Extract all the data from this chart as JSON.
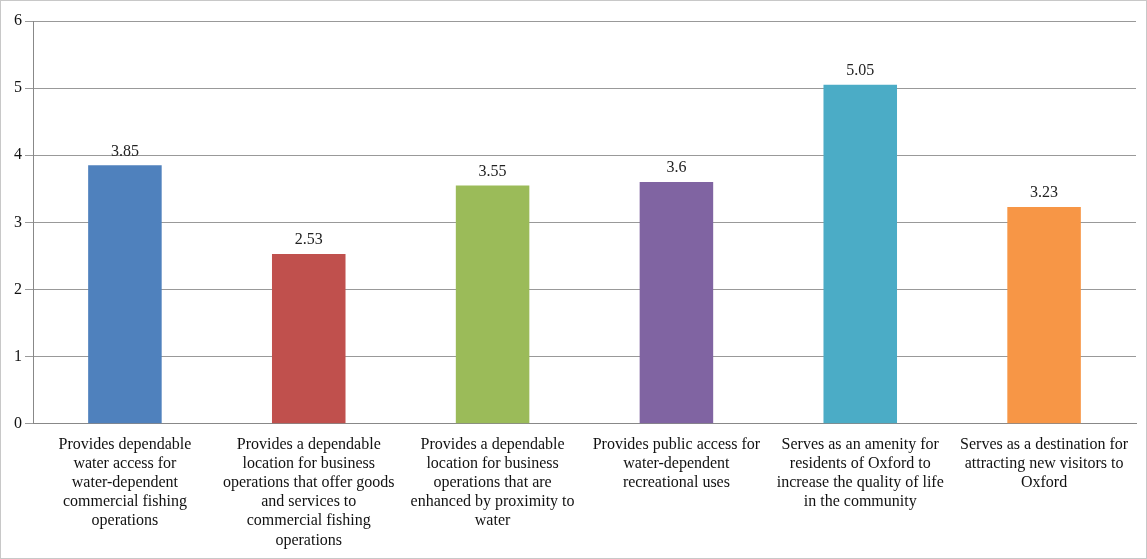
{
  "chart_data": {
    "type": "bar",
    "categories": [
      "Provides dependable water access for water-dependent commercial fishing operations",
      "Provides a dependable location for business operations that offer goods and services to commercial fishing operations",
      "Provides a dependable location for business operations that are enhanced by proximity to water",
      "Provides public access for water-dependent recreational uses",
      "Serves as an amenity for residents of Oxford to increase the quality of life in the community",
      "Serves as a destination for attracting new visitors to Oxford"
    ],
    "values": [
      3.85,
      2.53,
      3.55,
      3.6,
      5.05,
      3.23
    ],
    "colors": [
      "#4f81bd",
      "#c0504d",
      "#9bbb59",
      "#8064a2",
      "#4bacc6",
      "#f79646"
    ],
    "ylim": [
      0,
      6
    ],
    "yticks": [
      0,
      1,
      2,
      3,
      4,
      5,
      6
    ],
    "grid": "y",
    "legend": false,
    "data_labels": true
  }
}
